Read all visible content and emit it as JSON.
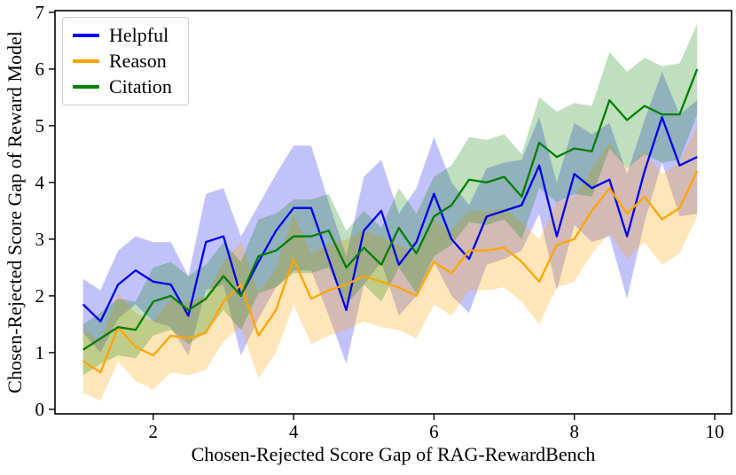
{
  "figure": {
    "background": "#ffffff",
    "text_color": "#000000"
  },
  "chart_data": {
    "type": "line",
    "title": "",
    "xlabel": "Chosen-Rejected Score Gap of RAG-RewardBench",
    "ylabel": "Chosen-Rejected Score Gap of Reward Model",
    "xlim": [
      0.6,
      10.24
    ],
    "ylim": [
      -0.08,
      7.03
    ],
    "x_ticks": [
      2,
      4,
      6,
      8,
      10
    ],
    "y_ticks": [
      0,
      1,
      2,
      3,
      4,
      5,
      6,
      7
    ],
    "grid": false,
    "legend_position": "upper-left",
    "band_note": "shaded regions are confidence bands around each line",
    "x": [
      1.0,
      1.25,
      1.5,
      1.75,
      2.0,
      2.25,
      2.5,
      2.75,
      3.0,
      3.25,
      3.5,
      3.75,
      4.0,
      4.25,
      4.5,
      4.75,
      5.0,
      5.25,
      5.5,
      5.75,
      6.0,
      6.25,
      6.5,
      6.75,
      7.0,
      7.25,
      7.5,
      7.75,
      8.0,
      8.25,
      8.5,
      8.75,
      9.0,
      9.25,
      9.5,
      9.75
    ],
    "series": [
      {
        "name": "Helpful",
        "color": "#0000ee",
        "band_opacity": 0.24,
        "values": [
          1.85,
          1.55,
          2.2,
          2.45,
          2.25,
          2.2,
          1.65,
          2.95,
          3.05,
          2.0,
          2.6,
          3.15,
          3.55,
          3.55,
          2.65,
          1.75,
          3.15,
          3.5,
          2.55,
          2.95,
          3.8,
          3.0,
          2.65,
          3.4,
          3.5,
          3.6,
          4.3,
          3.05,
          4.15,
          3.9,
          4.05,
          3.05,
          4.2,
          5.15,
          4.3,
          4.45
        ],
        "band_lower": [
          1.35,
          1.0,
          1.6,
          1.85,
          1.55,
          1.45,
          0.95,
          2.1,
          2.2,
          0.95,
          1.6,
          2.15,
          2.45,
          2.45,
          1.65,
          0.8,
          2.2,
          2.6,
          1.65,
          2.0,
          2.6,
          2.0,
          1.7,
          2.55,
          2.65,
          2.8,
          3.45,
          2.1,
          3.25,
          2.95,
          3.05,
          1.95,
          3.3,
          4.35,
          3.4,
          3.45
        ],
        "band_upper": [
          2.3,
          2.1,
          2.8,
          3.05,
          2.95,
          2.95,
          2.35,
          3.8,
          3.9,
          3.05,
          3.6,
          4.15,
          4.65,
          4.65,
          3.65,
          2.7,
          4.1,
          4.4,
          3.45,
          3.9,
          4.8,
          4.0,
          3.6,
          4.25,
          4.35,
          4.4,
          5.15,
          4.0,
          5.05,
          4.85,
          5.05,
          4.15,
          5.1,
          5.95,
          5.2,
          5.45
        ]
      },
      {
        "name": "Reason",
        "color": "#ffa500",
        "band_opacity": 0.28,
        "values": [
          0.85,
          0.65,
          1.45,
          1.1,
          0.95,
          1.3,
          1.25,
          1.35,
          1.9,
          2.2,
          1.3,
          1.75,
          2.65,
          1.95,
          2.1,
          2.2,
          2.35,
          2.25,
          2.15,
          2.0,
          2.6,
          2.4,
          2.8,
          2.8,
          2.85,
          2.6,
          2.25,
          2.9,
          3.0,
          3.5,
          3.9,
          3.45,
          3.75,
          3.35,
          3.55,
          4.2
        ],
        "band_lower": [
          0.3,
          0.15,
          0.85,
          0.5,
          0.35,
          0.65,
          0.6,
          0.7,
          1.2,
          1.45,
          0.55,
          1.0,
          1.85,
          1.15,
          1.3,
          1.4,
          1.55,
          1.45,
          1.4,
          1.25,
          1.85,
          1.65,
          2.1,
          2.1,
          2.15,
          1.9,
          1.5,
          2.15,
          2.25,
          2.75,
          3.1,
          2.65,
          2.95,
          2.55,
          2.75,
          3.4
        ],
        "band_upper": [
          1.4,
          1.2,
          2.05,
          1.7,
          1.55,
          1.95,
          1.9,
          2.0,
          2.6,
          2.95,
          2.05,
          2.5,
          3.45,
          2.75,
          2.9,
          3.0,
          3.15,
          3.05,
          2.9,
          2.75,
          3.35,
          3.15,
          3.5,
          3.5,
          3.55,
          3.3,
          3.0,
          3.65,
          3.75,
          4.25,
          4.7,
          4.25,
          4.55,
          4.15,
          4.35,
          5.0
        ]
      },
      {
        "name": "Citation",
        "color": "#008000",
        "band_opacity": 0.25,
        "values": [
          1.05,
          1.25,
          1.45,
          1.4,
          1.9,
          2.0,
          1.75,
          1.95,
          2.35,
          2.0,
          2.7,
          2.8,
          3.05,
          3.05,
          3.15,
          2.5,
          2.85,
          2.55,
          3.2,
          2.75,
          3.4,
          3.6,
          4.05,
          4.0,
          4.1,
          3.75,
          4.7,
          4.45,
          4.6,
          4.55,
          5.45,
          5.1,
          5.35,
          5.2,
          5.2,
          6.0
        ],
        "band_lower": [
          0.6,
          0.8,
          0.95,
          0.9,
          1.3,
          1.4,
          1.15,
          1.35,
          1.75,
          1.4,
          2.05,
          2.15,
          2.4,
          2.4,
          2.5,
          1.85,
          2.2,
          1.9,
          2.5,
          2.05,
          2.7,
          2.9,
          3.3,
          3.25,
          3.35,
          3.0,
          3.9,
          3.65,
          3.8,
          3.75,
          4.6,
          4.25,
          4.5,
          4.35,
          4.4,
          5.2
        ],
        "band_upper": [
          1.5,
          1.7,
          1.95,
          1.9,
          2.5,
          2.6,
          2.35,
          2.55,
          2.95,
          2.6,
          3.35,
          3.45,
          3.7,
          3.7,
          3.8,
          3.15,
          3.5,
          3.2,
          3.9,
          3.45,
          4.1,
          4.3,
          4.8,
          4.75,
          4.85,
          4.5,
          5.5,
          5.25,
          5.4,
          5.35,
          6.3,
          5.95,
          6.2,
          6.05,
          6.1,
          6.8
        ]
      }
    ]
  },
  "legend": {
    "items": [
      {
        "label": "Helpful"
      },
      {
        "label": "Reason"
      },
      {
        "label": "Citation"
      }
    ]
  }
}
